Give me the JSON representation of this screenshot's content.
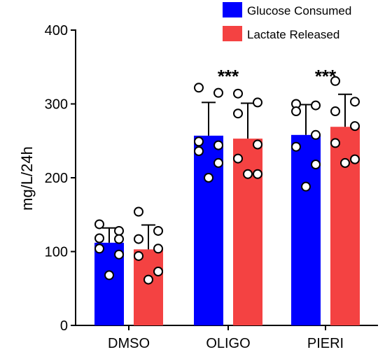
{
  "chart_data": {
    "type": "bar",
    "ylabel": "mg/L/24h",
    "xlabel": "",
    "ylim": [
      0,
      400
    ],
    "yticks": [
      0,
      100,
      200,
      300,
      400
    ],
    "categories": [
      "DMSO",
      "OLIGO",
      "PIERI"
    ],
    "series": [
      {
        "name": "Glucose Consumed",
        "color": "#0000ff",
        "values": [
          112,
          257,
          258
        ],
        "errors": [
          20,
          45,
          41
        ],
        "points": [
          [
            137,
            128,
            118,
            117,
            104,
            96,
            68
          ],
          [
            322,
            315,
            249,
            244,
            236,
            220,
            200
          ],
          [
            300,
            298,
            290,
            258,
            242,
            218,
            188
          ]
        ]
      },
      {
        "name": "Lactate Released",
        "color": "#f44242",
        "values": [
          103,
          253,
          269
        ],
        "errors": [
          33,
          48,
          44
        ],
        "points": [
          [
            154,
            128,
            117,
            104,
            94,
            73,
            62
          ],
          [
            314,
            302,
            287,
            245,
            226,
            205,
            205
          ],
          [
            331,
            303,
            290,
            270,
            247,
            225,
            220
          ]
        ]
      }
    ],
    "annotations": [
      {
        "category": "OLIGO",
        "text": "***"
      },
      {
        "category": "PIERI",
        "text": "***"
      }
    ],
    "legend": {
      "position": "top-right"
    }
  }
}
